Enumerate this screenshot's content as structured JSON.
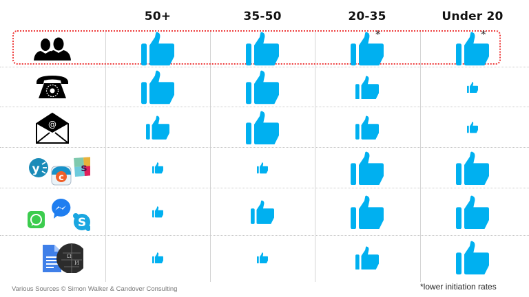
{
  "columns": [
    "50+",
    "35-50",
    "20-35",
    "Under 20"
  ],
  "rows": [
    {
      "channel": "in-person",
      "icon": "people-icon",
      "ratings": [
        3,
        3,
        3,
        3
      ],
      "asterisk": [
        false,
        false,
        true,
        true
      ]
    },
    {
      "channel": "telephone",
      "icon": "telephone-icon",
      "ratings": [
        3,
        3,
        2,
        1
      ],
      "asterisk": [
        false,
        false,
        false,
        false
      ]
    },
    {
      "channel": "email",
      "icon": "email-icon",
      "ratings": [
        2,
        3,
        2,
        1
      ],
      "asterisk": [
        false,
        false,
        false,
        false
      ]
    },
    {
      "channel": "collaboration-apps",
      "icon": "yammer-chatter-slack-icons",
      "ratings": [
        1,
        1,
        3,
        3
      ],
      "asterisk": [
        false,
        false,
        false,
        false
      ]
    },
    {
      "channel": "instant-messaging",
      "icon": "messenger-whatsapp-skype-icons",
      "ratings": [
        1,
        2,
        3,
        3
      ],
      "asterisk": [
        false,
        false,
        false,
        false
      ]
    },
    {
      "channel": "documents-wiki",
      "icon": "google-docs-wikipedia-icons",
      "ratings": [
        1,
        1,
        2,
        3
      ],
      "asterisk": [
        false,
        false,
        false,
        false
      ]
    }
  ],
  "asterisk_symbol": "*",
  "footer": {
    "source": "Various Sources   © Simon Walker & Candover Consulting",
    "footnote": "*lower  initiation rates"
  },
  "colors": {
    "thumb": "#00b0f0",
    "highlight_box": "#ee3a3a",
    "grid": "#d4d4d4"
  },
  "chart_data": {
    "type": "table",
    "title": "",
    "categories": [
      "50+",
      "35-50",
      "20-35",
      "Under 20"
    ],
    "scale": "thumb size: 1 = small, 2 = medium, 3 = large",
    "series": [
      {
        "name": "In person (people)",
        "values": [
          3,
          3,
          3,
          3
        ],
        "note": "20-35 and Under 20 marked * (lower initiation rates)"
      },
      {
        "name": "Telephone",
        "values": [
          3,
          3,
          2,
          1
        ]
      },
      {
        "name": "Email",
        "values": [
          2,
          3,
          2,
          1
        ]
      },
      {
        "name": "Yammer / Chatter / Slack",
        "values": [
          1,
          1,
          3,
          3
        ]
      },
      {
        "name": "Messenger / WhatsApp / Skype",
        "values": [
          1,
          2,
          3,
          3
        ]
      },
      {
        "name": "Google Docs / Wikipedia",
        "values": [
          1,
          1,
          2,
          3
        ]
      }
    ]
  }
}
